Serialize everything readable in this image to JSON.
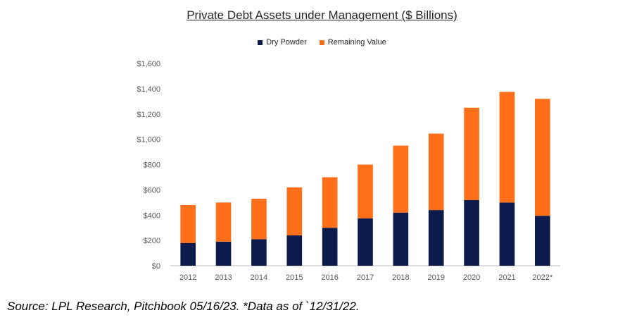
{
  "chart_data": {
    "type": "bar",
    "stacked": true,
    "title": "Private Debt Assets under Management ($ Billions)",
    "categories": [
      "2012",
      "2013",
      "2014",
      "2015",
      "2016",
      "2017",
      "2018",
      "2019",
      "2020",
      "2021",
      "2022*"
    ],
    "series": [
      {
        "name": "Dry Powder",
        "color": "#0d1b4c",
        "values": [
          180,
          190,
          210,
          240,
          300,
          375,
          420,
          440,
          520,
          500,
          395
        ]
      },
      {
        "name": "Remaining Value",
        "color": "#ff6f1a",
        "values": [
          300,
          310,
          320,
          380,
          400,
          425,
          530,
          605,
          730,
          875,
          925
        ]
      }
    ],
    "ylim": [
      0,
      1600
    ],
    "yticks": [
      "$0",
      "$200",
      "$400",
      "$600",
      "$800",
      "$1,000",
      "$1,200",
      "$1,400",
      "$1,600"
    ],
    "ytick_values": [
      0,
      200,
      400,
      600,
      800,
      1000,
      1200,
      1400,
      1600
    ],
    "legend_position": "top-center",
    "grid": false
  },
  "footer": {
    "source": "Source: LPL Research, Pitchbook 05/16/23. *Data as of `12/31/22."
  }
}
